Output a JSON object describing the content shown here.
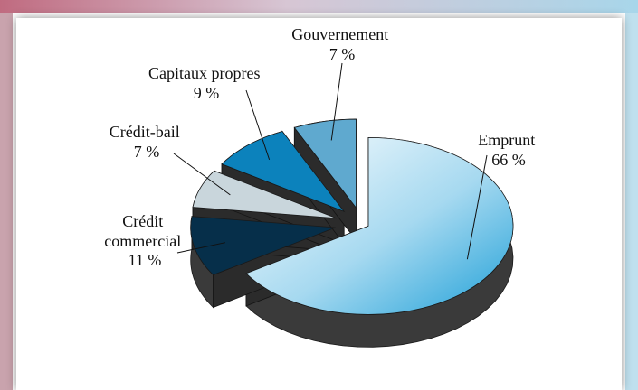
{
  "chart_data": {
    "type": "pie",
    "title": "",
    "slices": [
      {
        "label": "Emprunt",
        "value": 66,
        "value_label": "66 %",
        "color": "#4cb3dd"
      },
      {
        "label": "Crédit commercial",
        "label_lines": [
          "Crédit",
          "commercial"
        ],
        "value": 11,
        "value_label": "11 %",
        "color": "#062f4a"
      },
      {
        "label": "Crédit-bail",
        "value": 7,
        "value_label": "7 %",
        "color": "#c9d6dc"
      },
      {
        "label": "Capitaux propres",
        "value": 9,
        "value_label": "9 %",
        "color": "#0c82bc"
      },
      {
        "label": "Gouvernement",
        "value": 7,
        "value_label": "7 %",
        "color": "#5fa9cf"
      }
    ]
  }
}
